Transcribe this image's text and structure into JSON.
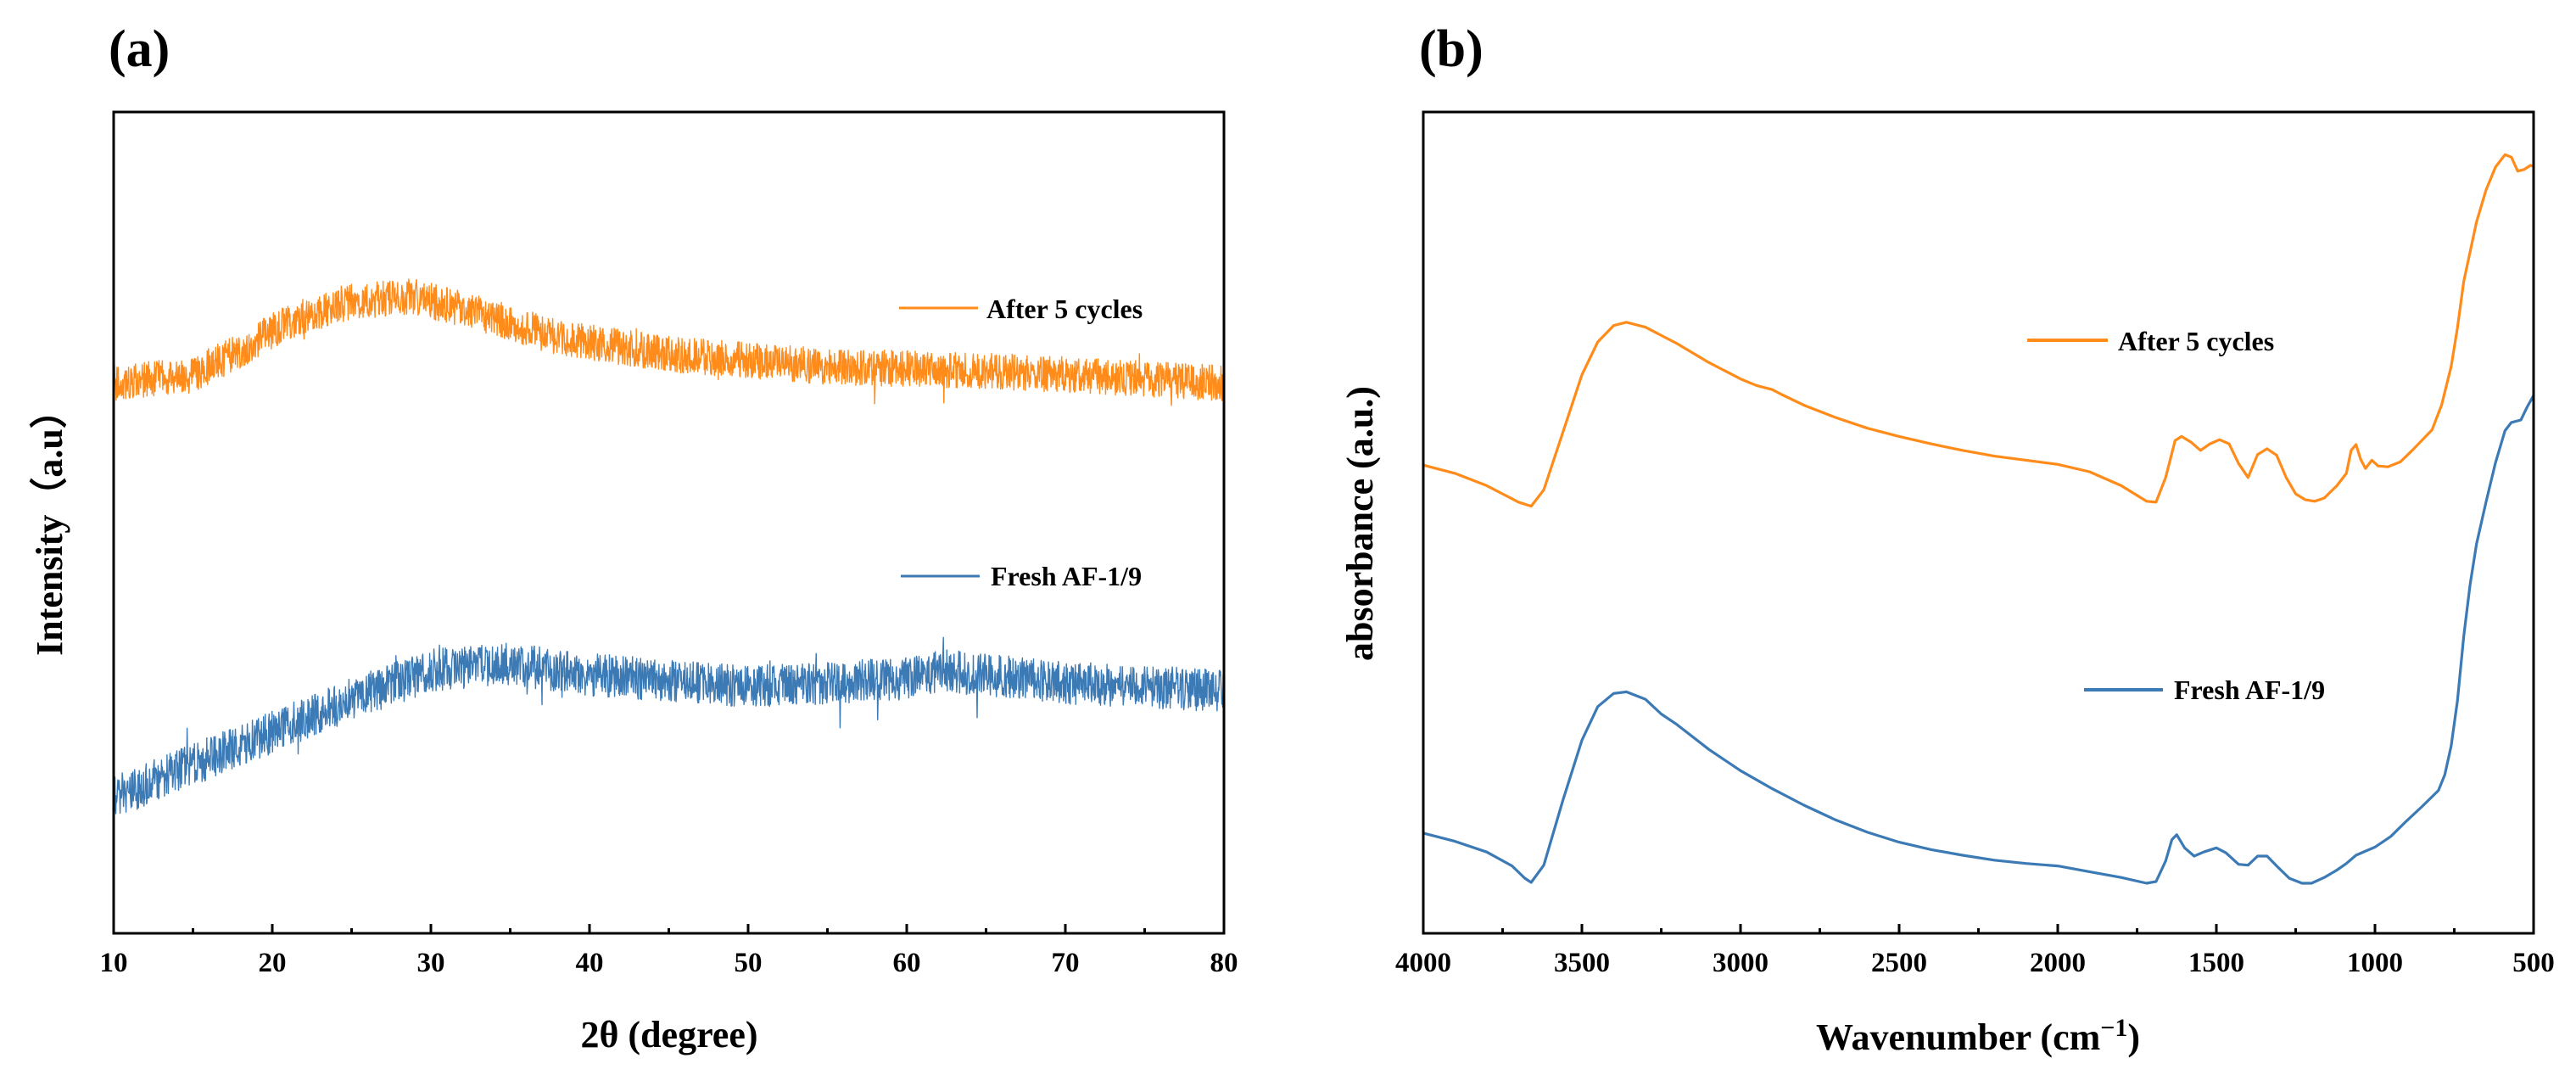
{
  "colors": {
    "orange": "#FF8C1A",
    "blue": "#3C7AB5"
  },
  "chart_data": [
    {
      "panel_label": "(a)",
      "type": "line",
      "title": "",
      "xlabel": "2θ (degree)",
      "ylabel": "Intensity（a.u）",
      "xlim": [
        10,
        80
      ],
      "ylim": [
        0,
        100
      ],
      "y_ticks_shown": false,
      "x_ticks": [
        10,
        20,
        30,
        40,
        50,
        60,
        70,
        80
      ],
      "x_tick_labels": [
        "10",
        "20",
        "30",
        "40",
        "50",
        "60",
        "70",
        "80"
      ],
      "grid": false,
      "legend_placement": "right, beside each curve",
      "series": [
        {
          "name": "After 5 cycles",
          "color": "orange",
          "noise_amplitude": 2.2,
          "baseline": [
            [
              10,
              67
            ],
            [
              15,
              68
            ],
            [
              18,
              71
            ],
            [
              21,
              74.5
            ],
            [
              25,
              77
            ],
            [
              29,
              77.5
            ],
            [
              33,
              75.5
            ],
            [
              38,
              72.5
            ],
            [
              45,
              70.5
            ],
            [
              55,
              69
            ],
            [
              65,
              68.5
            ],
            [
              80,
              67
            ]
          ]
        },
        {
          "name": "Fresh AF-1/9",
          "color": "blue",
          "noise_amplitude": 2.6,
          "baseline": [
            [
              10,
              16.5
            ],
            [
              15,
              20.5
            ],
            [
              20,
              24.5
            ],
            [
              25,
              28.5
            ],
            [
              30,
              32
            ],
            [
              35,
              32.8
            ],
            [
              40,
              31.5
            ],
            [
              50,
              30
            ],
            [
              60,
              31
            ],
            [
              62,
              32
            ],
            [
              70,
              30.5
            ],
            [
              80,
              29.5
            ]
          ]
        }
      ]
    },
    {
      "panel_label": "(b)",
      "type": "line",
      "title": "",
      "xlabel": "Wavenumber (cm",
      "xlabel_superscript": "−1",
      "xlabel_suffix": ")",
      "ylabel": "absorbance (a.u.)",
      "xlim": [
        4000,
        500
      ],
      "ylim": [
        0,
        100
      ],
      "y_ticks_shown": false,
      "x_ticks": [
        4000,
        3500,
        3000,
        2500,
        2000,
        1500,
        1000,
        500
      ],
      "x_tick_labels": [
        "4000",
        "3500",
        "3000",
        "2500",
        "2000",
        "1500",
        "1000",
        "500"
      ],
      "grid": false,
      "legend_placement": "right, beside each curve",
      "series": [
        {
          "name": "After 5 cycles",
          "color": "orange",
          "points": [
            [
              4000,
              57
            ],
            [
              3900,
              56
            ],
            [
              3800,
              54.5
            ],
            [
              3700,
              52.5
            ],
            [
              3660,
              52
            ],
            [
              3620,
              54
            ],
            [
              3560,
              61
            ],
            [
              3500,
              68
            ],
            [
              3450,
              72
            ],
            [
              3400,
              74
            ],
            [
              3360,
              74.4
            ],
            [
              3300,
              73.8
            ],
            [
              3200,
              71.8
            ],
            [
              3100,
              69.5
            ],
            [
              3000,
              67.5
            ],
            [
              2950,
              66.7
            ],
            [
              2900,
              66.2
            ],
            [
              2870,
              65.6
            ],
            [
              2800,
              64.3
            ],
            [
              2700,
              62.8
            ],
            [
              2600,
              61.5
            ],
            [
              2500,
              60.5
            ],
            [
              2400,
              59.6
            ],
            [
              2300,
              58.8
            ],
            [
              2200,
              58.1
            ],
            [
              2100,
              57.6
            ],
            [
              2000,
              57.1
            ],
            [
              1900,
              56.2
            ],
            [
              1800,
              54.5
            ],
            [
              1720,
              52.6
            ],
            [
              1690,
              52.5
            ],
            [
              1660,
              55.5
            ],
            [
              1630,
              60
            ],
            [
              1610,
              60.5
            ],
            [
              1580,
              59.8
            ],
            [
              1550,
              58.8
            ],
            [
              1520,
              59.6
            ],
            [
              1490,
              60.1
            ],
            [
              1460,
              59.6
            ],
            [
              1430,
              57.2
            ],
            [
              1400,
              55.5
            ],
            [
              1370,
              58.3
            ],
            [
              1340,
              59
            ],
            [
              1310,
              58.2
            ],
            [
              1280,
              55.5
            ],
            [
              1250,
              53.5
            ],
            [
              1220,
              52.8
            ],
            [
              1190,
              52.6
            ],
            [
              1160,
              53
            ],
            [
              1120,
              54.5
            ],
            [
              1090,
              56
            ],
            [
              1075,
              58.8
            ],
            [
              1060,
              59.5
            ],
            [
              1045,
              57.7
            ],
            [
              1030,
              56.6
            ],
            [
              1010,
              57.6
            ],
            [
              990,
              56.9
            ],
            [
              960,
              56.8
            ],
            [
              920,
              57.4
            ],
            [
              880,
              58.9
            ],
            [
              850,
              60.1
            ],
            [
              820,
              61.3
            ],
            [
              790,
              64.3
            ],
            [
              760,
              69
            ],
            [
              740,
              73.7
            ],
            [
              720,
              79.4
            ],
            [
              700,
              83
            ],
            [
              680,
              86.6
            ],
            [
              650,
              90.5
            ],
            [
              620,
              93.3
            ],
            [
              590,
              94.8
            ],
            [
              570,
              94.5
            ],
            [
              550,
              92.8
            ],
            [
              530,
              93
            ],
            [
              510,
              93.5
            ],
            [
              500,
              93.4
            ]
          ]
        },
        {
          "name": "Fresh AF-1/9",
          "color": "blue",
          "points": [
            [
              4000,
              12.2
            ],
            [
              3900,
              11.2
            ],
            [
              3800,
              9.9
            ],
            [
              3720,
              8.2
            ],
            [
              3680,
              6.7
            ],
            [
              3660,
              6.2
            ],
            [
              3620,
              8.3
            ],
            [
              3560,
              16.2
            ],
            [
              3500,
              23.5
            ],
            [
              3450,
              27.6
            ],
            [
              3400,
              29.2
            ],
            [
              3360,
              29.4
            ],
            [
              3300,
              28.5
            ],
            [
              3250,
              26.7
            ],
            [
              3200,
              25.4
            ],
            [
              3100,
              22.4
            ],
            [
              3000,
              19.8
            ],
            [
              2900,
              17.6
            ],
            [
              2800,
              15.6
            ],
            [
              2700,
              13.8
            ],
            [
              2600,
              12.3
            ],
            [
              2500,
              11.1
            ],
            [
              2400,
              10.2
            ],
            [
              2300,
              9.5
            ],
            [
              2200,
              8.9
            ],
            [
              2100,
              8.5
            ],
            [
              2000,
              8.2
            ],
            [
              1900,
              7.5
            ],
            [
              1800,
              6.8
            ],
            [
              1720,
              6.1
            ],
            [
              1690,
              6.3
            ],
            [
              1660,
              8.8
            ],
            [
              1640,
              11.4
            ],
            [
              1625,
              12
            ],
            [
              1600,
              10.4
            ],
            [
              1570,
              9.4
            ],
            [
              1540,
              9.9
            ],
            [
              1500,
              10.4
            ],
            [
              1470,
              9.8
            ],
            [
              1430,
              8.4
            ],
            [
              1400,
              8.3
            ],
            [
              1370,
              9.4
            ],
            [
              1340,
              9.4
            ],
            [
              1310,
              8.2
            ],
            [
              1270,
              6.7
            ],
            [
              1230,
              6.1
            ],
            [
              1200,
              6.1
            ],
            [
              1160,
              6.8
            ],
            [
              1120,
              7.7
            ],
            [
              1090,
              8.5
            ],
            [
              1060,
              9.5
            ],
            [
              1000,
              10.5
            ],
            [
              950,
              11.8
            ],
            [
              900,
              13.7
            ],
            [
              850,
              15.5
            ],
            [
              800,
              17.4
            ],
            [
              780,
              19.3
            ],
            [
              760,
              22.8
            ],
            [
              740,
              28.3
            ],
            [
              720,
              36.2
            ],
            [
              700,
              42.5
            ],
            [
              680,
              47.4
            ],
            [
              650,
              52.5
            ],
            [
              620,
              57.3
            ],
            [
              590,
              61.2
            ],
            [
              570,
              62.2
            ],
            [
              540,
              62.5
            ],
            [
              520,
              64.1
            ],
            [
              500,
              65.5
            ]
          ]
        }
      ]
    }
  ]
}
